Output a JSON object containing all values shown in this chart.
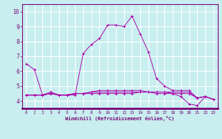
{
  "xlabel": "Windchill (Refroidissement éolien,°C)",
  "background_color": "#c8eef0",
  "grid_color": "#ffffff",
  "line_color": "#aa00aa",
  "axis_color": "#770077",
  "xlim": [
    -0.5,
    23.5
  ],
  "ylim": [
    3.5,
    10.5
  ],
  "xticks": [
    0,
    1,
    2,
    3,
    4,
    5,
    6,
    7,
    8,
    9,
    10,
    11,
    12,
    13,
    14,
    15,
    16,
    17,
    18,
    19,
    20,
    21,
    22,
    23
  ],
  "yticks": [
    4,
    5,
    6,
    7,
    8,
    9,
    10
  ],
  "series": [
    [
      6.5,
      6.1,
      4.4,
      4.6,
      4.4,
      4.4,
      4.4,
      7.2,
      7.8,
      8.2,
      9.1,
      9.1,
      9.0,
      9.7,
      8.5,
      7.3,
      5.5,
      5.0,
      4.7,
      4.7,
      4.7,
      4.2,
      4.3,
      4.1
    ],
    [
      4.4,
      4.4,
      4.4,
      4.5,
      4.4,
      4.4,
      4.5,
      4.5,
      4.5,
      4.5,
      4.5,
      4.5,
      4.5,
      4.5,
      4.6,
      4.6,
      4.6,
      4.6,
      4.6,
      4.6,
      4.6,
      4.2,
      4.3,
      4.1
    ],
    [
      4.4,
      4.4,
      4.4,
      4.5,
      4.4,
      4.4,
      4.5,
      4.5,
      4.6,
      4.6,
      4.6,
      4.6,
      4.6,
      4.6,
      4.6,
      4.6,
      4.5,
      4.5,
      4.5,
      4.3,
      3.8,
      3.7,
      4.3,
      4.1
    ],
    [
      4.4,
      4.4,
      4.4,
      4.5,
      4.4,
      4.4,
      4.5,
      4.5,
      4.6,
      4.7,
      4.7,
      4.7,
      4.7,
      4.7,
      4.7,
      4.6,
      4.6,
      4.6,
      4.5,
      4.5,
      4.5,
      4.2,
      4.3,
      4.1
    ]
  ]
}
